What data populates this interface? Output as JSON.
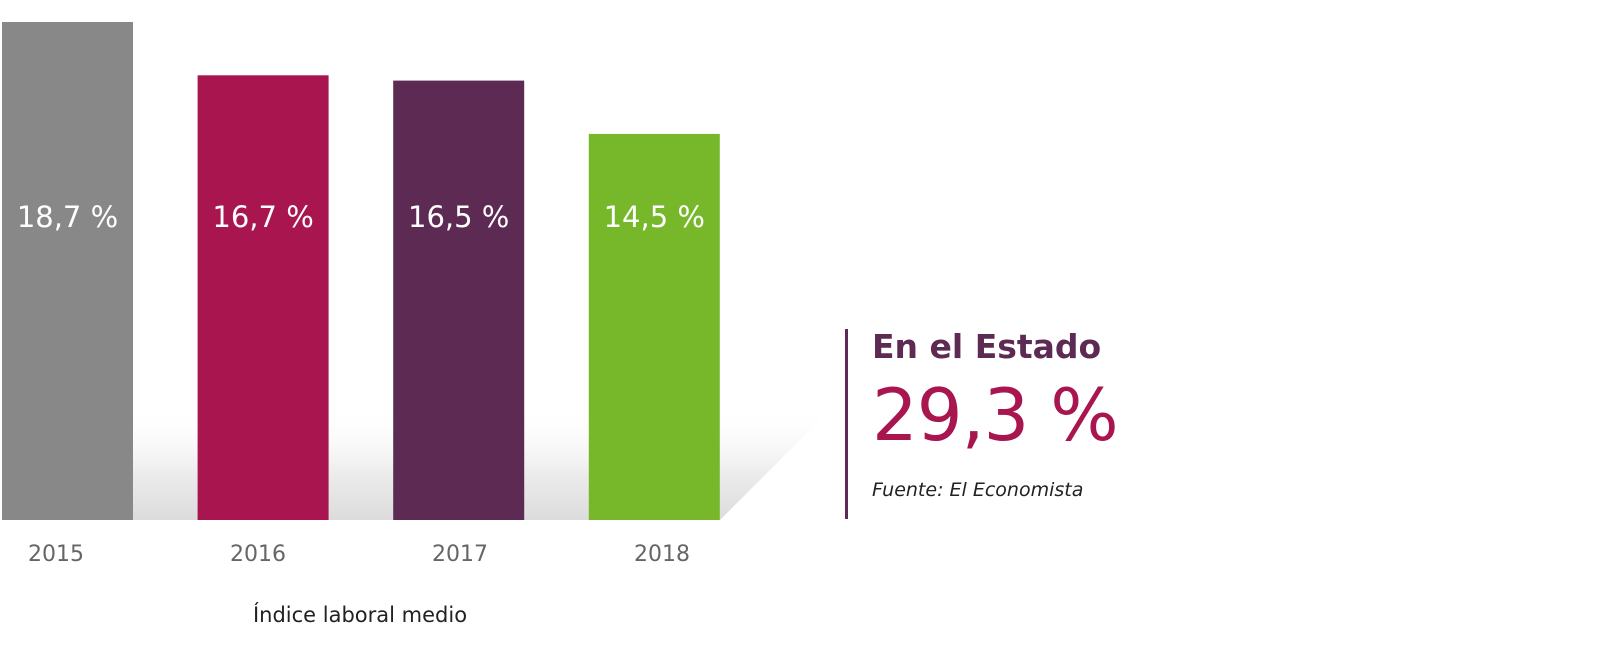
{
  "chart_data": {
    "type": "bar",
    "categories": [
      "2015",
      "2016",
      "2017",
      "2018"
    ],
    "values": [
      18.7,
      16.7,
      16.5,
      14.5
    ],
    "value_labels": [
      "18,7 %",
      "16,7 %",
      "16,5 %",
      "14,5 %"
    ],
    "colors": [
      "#888888",
      "#a8154f",
      "#5c2a52",
      "#76b82a"
    ],
    "xlabel": "Índice laboral medio",
    "ylabel": "",
    "grid": false,
    "legend": "none"
  },
  "callout": {
    "heading": "En el Estado",
    "value": "29,3 %",
    "source": "Fuente: El Economista",
    "heading_color": "#5c2a52",
    "value_color": "#a8154f"
  }
}
